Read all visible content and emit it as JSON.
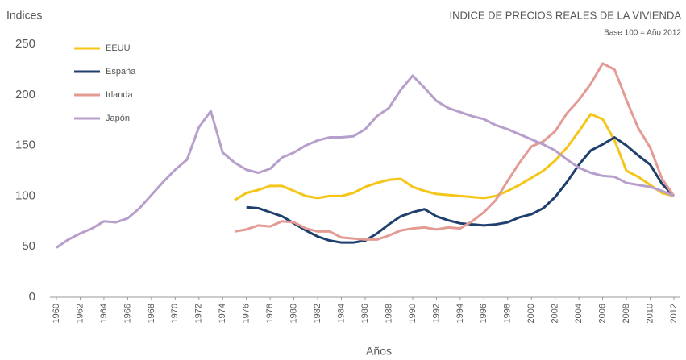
{
  "chart_data": {
    "type": "line",
    "title": "INDICE DE PRECIOS REALES DE LA VIVIENDA",
    "subtitle": "Base 100 = Año 2012",
    "y_label": "Indices",
    "x_label": "Años",
    "x": [
      1960,
      1961,
      1962,
      1963,
      1964,
      1965,
      1966,
      1967,
      1968,
      1969,
      1970,
      1971,
      1972,
      1973,
      1974,
      1975,
      1976,
      1977,
      1978,
      1979,
      1980,
      1981,
      1982,
      1983,
      1984,
      1985,
      1986,
      1987,
      1988,
      1989,
      1990,
      1991,
      1992,
      1993,
      1994,
      1995,
      1996,
      1997,
      1998,
      1999,
      2000,
      2001,
      2002,
      2003,
      2004,
      2005,
      2006,
      2007,
      2008,
      2009,
      2010,
      2011,
      2012
    ],
    "series": [
      {
        "name": "EEUU",
        "color": "#f5c518",
        "values": [
          null,
          null,
          null,
          null,
          null,
          null,
          null,
          null,
          null,
          null,
          null,
          null,
          null,
          null,
          null,
          96,
          103,
          106,
          110,
          110,
          105,
          100,
          98,
          100,
          100,
          103,
          109,
          113,
          116,
          117,
          109,
          105,
          102,
          101,
          100,
          99,
          98,
          100,
          105,
          111,
          118,
          125,
          135,
          148,
          164,
          181,
          176,
          155,
          125,
          119,
          111,
          103,
          100
        ]
      },
      {
        "name": "España",
        "color": "#1f3f6e",
        "values": [
          null,
          null,
          null,
          null,
          null,
          null,
          null,
          null,
          null,
          null,
          null,
          null,
          null,
          null,
          null,
          null,
          89,
          88,
          84,
          80,
          73,
          66,
          60,
          56,
          54,
          54,
          56,
          63,
          72,
          80,
          84,
          87,
          80,
          76,
          73,
          72,
          71,
          72,
          74,
          79,
          82,
          88,
          99,
          114,
          131,
          145,
          151,
          158,
          150,
          140,
          131,
          112,
          100
        ]
      },
      {
        "name": "Irlanda",
        "color": "#e39b94",
        "values": [
          null,
          null,
          null,
          null,
          null,
          null,
          null,
          null,
          null,
          null,
          null,
          null,
          null,
          null,
          null,
          65,
          67,
          71,
          70,
          75,
          74,
          68,
          65,
          65,
          59,
          58,
          57,
          57,
          61,
          66,
          68,
          69,
          67,
          69,
          68,
          75,
          84,
          96,
          115,
          133,
          149,
          154,
          164,
          182,
          195,
          211,
          231,
          225,
          195,
          167,
          148,
          117,
          100
        ]
      },
      {
        "name": "Japón",
        "color": "#b79fcb",
        "values": [
          49,
          57,
          63,
          68,
          75,
          74,
          78,
          88,
          101,
          114,
          126,
          136,
          168,
          184,
          143,
          133,
          126,
          123,
          127,
          138,
          143,
          150,
          155,
          158,
          158,
          159,
          166,
          179,
          187,
          205,
          219,
          207,
          194,
          187,
          183,
          179,
          176,
          170,
          166,
          161,
          156,
          151,
          145,
          136,
          128,
          123,
          120,
          119,
          113,
          111,
          109,
          105,
          100
        ]
      }
    ],
    "xlim": [
      1960,
      2012
    ],
    "xticks": [
      1960,
      1962,
      1964,
      1966,
      1968,
      1970,
      1972,
      1974,
      1976,
      1978,
      1980,
      1982,
      1984,
      1986,
      1988,
      1990,
      1992,
      1994,
      1996,
      1998,
      2000,
      2002,
      2004,
      2006,
      2008,
      2010,
      2012
    ],
    "ylim": [
      0,
      250
    ],
    "yticks": [
      0,
      50,
      100,
      150,
      200,
      250
    ],
    "grid": false,
    "legend": "upper left"
  }
}
